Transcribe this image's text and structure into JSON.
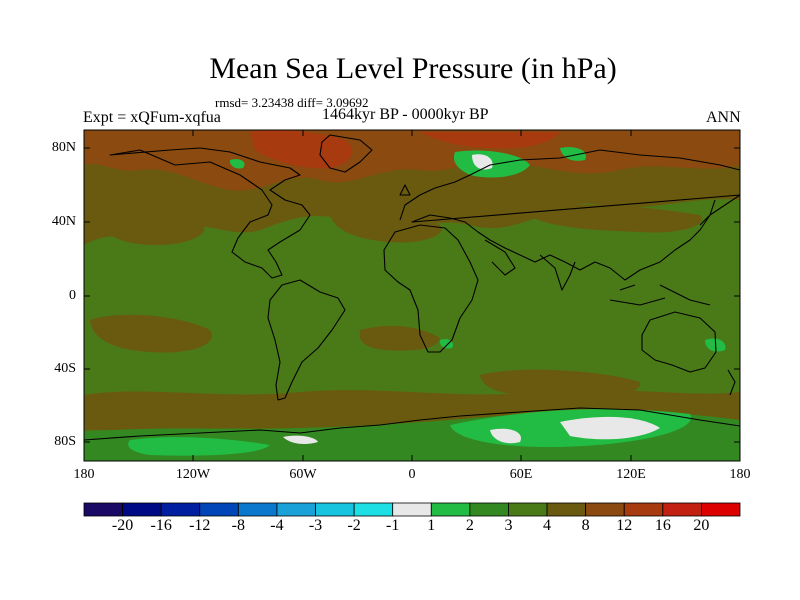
{
  "title": "Mean Sea Level Pressure (in hPa)",
  "stats": "rmsd= 3.23438 diff= 3.09692",
  "experiment": "Expt = xQFum-xqfua",
  "period": "1464kyr BP - 0000kyr BP",
  "season": "ANN",
  "lat_ticks": [
    "80N",
    "40N",
    "0",
    "40S",
    "80S"
  ],
  "lon_ticks": [
    "180",
    "120W",
    "60W",
    "0",
    "60E",
    "120E",
    "180"
  ],
  "colorbar": {
    "labels": [
      "-20",
      "-16",
      "-12",
      "-8",
      "-4",
      "-3",
      "-2",
      "-1",
      "1",
      "2",
      "3",
      "4",
      "8",
      "12",
      "16",
      "20"
    ],
    "colors": [
      "#1a0a66",
      "#000a85",
      "#001fa0",
      "#0046b8",
      "#0a78cc",
      "#1aa2d8",
      "#16c4e0",
      "#1ee0e4",
      "#e8e8e8",
      "#22bb44",
      "#338822",
      "#4a7a18",
      "#6a5a10",
      "#8a4a10",
      "#a83a10",
      "#c22010",
      "#dd0000"
    ]
  },
  "map_colors": {
    "base": "#4a7a18",
    "dark": "#6a5a10",
    "brown": "#8a4a10",
    "red": "#a83a10",
    "light": "#338822",
    "bright": "#22bb44",
    "white": "#e8e8e8",
    "coast": "#000000"
  }
}
